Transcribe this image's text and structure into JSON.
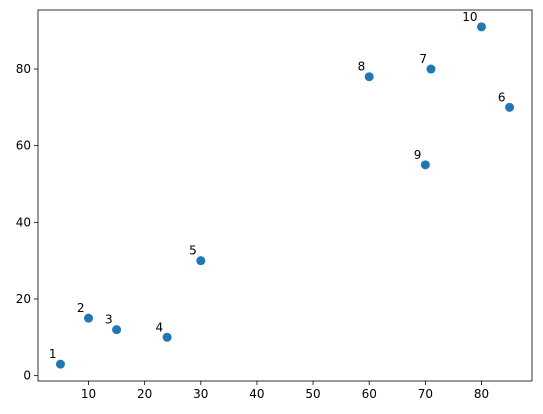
{
  "chart_data": {
    "type": "scatter",
    "x": [
      5,
      10,
      15,
      24,
      30,
      85,
      71,
      60,
      70,
      80
    ],
    "series": [
      {
        "color": "#1f77b4",
        "values": [
          3,
          15,
          12,
          10,
          30,
          70,
          80,
          78,
          55,
          91
        ]
      }
    ],
    "point_labels": [
      "1",
      "2",
      "3",
      "4",
      "5",
      "6",
      "7",
      "8",
      "9",
      "10"
    ],
    "xlim": [
      1,
      89
    ],
    "ylim": [
      -1.4,
      95.4
    ],
    "xticks": [
      10,
      20,
      30,
      40,
      50,
      60,
      70,
      80
    ],
    "yticks": [
      0,
      20,
      40,
      60,
      80
    ]
  }
}
